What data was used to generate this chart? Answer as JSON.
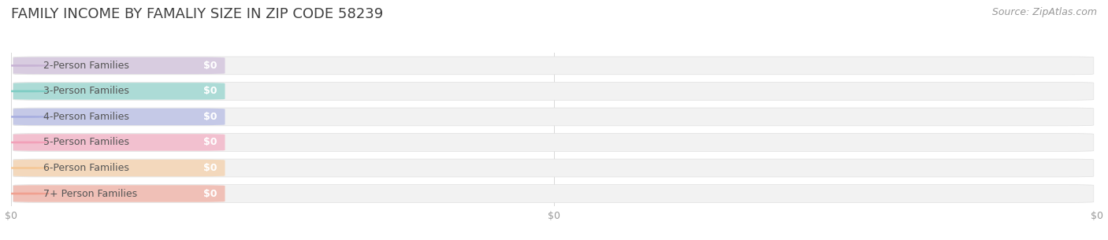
{
  "title": "FAMILY INCOME BY FAMALIY SIZE IN ZIP CODE 58239",
  "source": "Source: ZipAtlas.com",
  "categories": [
    "2-Person Families",
    "3-Person Families",
    "4-Person Families",
    "5-Person Families",
    "6-Person Families",
    "7+ Person Families"
  ],
  "values": [
    0,
    0,
    0,
    0,
    0,
    0
  ],
  "bar_colors": [
    "#c8b4d5",
    "#7ecdc4",
    "#a8afe0",
    "#f2a0b8",
    "#f5c898",
    "#f0a090"
  ],
  "value_labels": [
    "$0",
    "$0",
    "$0",
    "$0",
    "$0",
    "$0"
  ],
  "background_color": "#ffffff",
  "bar_background": "#f2f2f2",
  "title_fontsize": 13,
  "source_fontsize": 9,
  "label_fontsize": 9,
  "value_fontsize": 9,
  "tick_fontsize": 9,
  "xtick_labels": [
    "$0",
    "$0",
    "$0"
  ],
  "xtick_positions": [
    0.0,
    0.5,
    1.0
  ]
}
